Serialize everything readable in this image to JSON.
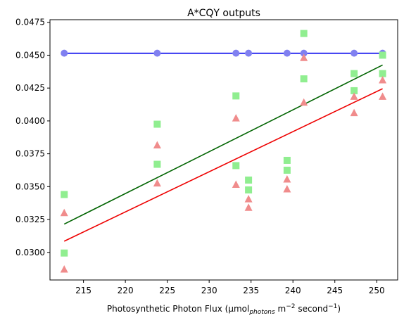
{
  "chart_data": {
    "type": "scatter",
    "title": "A*CQY outputs",
    "xlabel": {
      "prefix": "Photosynthetic Photon Flux (µmol",
      "sub": "photons",
      "mid": " m",
      "sup1": "−2",
      "mid2": " second",
      "sup2": "−1",
      "suffix": ")"
    },
    "ylabel": "",
    "xlim": [
      211,
      252.5
    ],
    "ylim": [
      0.0279,
      0.0477
    ],
    "xticks": [
      215,
      220,
      225,
      230,
      235,
      240,
      245,
      250
    ],
    "yticks": [
      0.03,
      0.0325,
      0.035,
      0.0375,
      0.04,
      0.0425,
      0.045,
      0.0475
    ],
    "ytick_labels": [
      "0.0300",
      "0.0325",
      "0.0350",
      "0.0375",
      "0.0400",
      "0.0425",
      "0.0450",
      "0.0475"
    ],
    "grid": false,
    "series": [
      {
        "marker": "circle",
        "color": "#8080f0",
        "points": [
          [
            212.7,
            0.04515
          ],
          [
            223.8,
            0.04515
          ],
          [
            233.2,
            0.04515
          ],
          [
            234.7,
            0.04515
          ],
          [
            239.3,
            0.04515
          ],
          [
            241.3,
            0.04515
          ],
          [
            247.3,
            0.04515
          ],
          [
            250.7,
            0.04515
          ]
        ]
      },
      {
        "marker": "square",
        "color": "#90ee90",
        "points": [
          [
            212.7,
            0.0344
          ],
          [
            212.7,
            0.02995
          ],
          [
            223.8,
            0.03975
          ],
          [
            223.8,
            0.0367
          ],
          [
            233.2,
            0.0419
          ],
          [
            233.2,
            0.0366
          ],
          [
            234.7,
            0.0355
          ],
          [
            234.7,
            0.03475
          ],
          [
            239.3,
            0.037
          ],
          [
            239.3,
            0.03625
          ],
          [
            241.3,
            0.04665
          ],
          [
            241.3,
            0.0432
          ],
          [
            247.3,
            0.0436
          ],
          [
            247.3,
            0.0423
          ],
          [
            250.7,
            0.045
          ],
          [
            250.7,
            0.0436
          ]
        ]
      },
      {
        "marker": "triangle",
        "color": "#f08c8c",
        "points": [
          [
            212.7,
            0.033
          ],
          [
            212.7,
            0.0287
          ],
          [
            223.8,
            0.03815
          ],
          [
            223.8,
            0.03525
          ],
          [
            233.2,
            0.0402
          ],
          [
            233.2,
            0.03515
          ],
          [
            234.7,
            0.03405
          ],
          [
            234.7,
            0.0334
          ],
          [
            239.3,
            0.03555
          ],
          [
            239.3,
            0.0348
          ],
          [
            241.3,
            0.0448
          ],
          [
            241.3,
            0.0414
          ],
          [
            247.3,
            0.04185
          ],
          [
            247.3,
            0.0406
          ],
          [
            250.7,
            0.0431
          ],
          [
            250.7,
            0.04185
          ]
        ]
      }
    ],
    "lines": [
      {
        "color": "#0000ee",
        "x": [
          212.7,
          250.7
        ],
        "y": [
          0.04515,
          0.04515
        ]
      },
      {
        "color": "#006400",
        "x": [
          212.7,
          250.7
        ],
        "y": [
          0.03215,
          0.04425
        ]
      },
      {
        "color": "#ee0000",
        "x": [
          212.7,
          250.7
        ],
        "y": [
          0.03085,
          0.04245
        ]
      }
    ]
  }
}
